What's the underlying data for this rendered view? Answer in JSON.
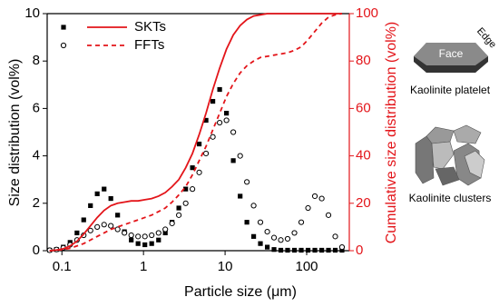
{
  "chart_data": {
    "type": "scatter",
    "xlabel": "Particle size (μm)",
    "ylabel": "Size distribution (vol%)",
    "y2label": "Cumulative size distribution (vol%)",
    "log_x": true,
    "xlim": [
      0.066,
      333
    ],
    "xticks": [
      0.1,
      1,
      10,
      100
    ],
    "ylim": [
      0,
      10
    ],
    "yticks": [
      0,
      2,
      4,
      6,
      8,
      10
    ],
    "y2lim": [
      0,
      100
    ],
    "y2ticks": [
      0,
      20,
      40,
      60,
      80,
      100
    ],
    "y2color": "#e3151a",
    "x": [
      0.0708,
      0.0858,
      0.104,
      0.126,
      0.153,
      0.185,
      0.224,
      0.271,
      0.329,
      0.398,
      0.482,
      0.584,
      0.708,
      0.858,
      1.04,
      1.26,
      1.53,
      1.85,
      2.24,
      2.71,
      3.29,
      3.98,
      4.82,
      5.84,
      7.08,
      8.58,
      10.4,
      12.6,
      15.3,
      18.5,
      22.4,
      27.1,
      32.9,
      39.8,
      48.2,
      58.4,
      70.8,
      85.8,
      104,
      126,
      153,
      185,
      224,
      271
    ],
    "series": [
      {
        "name": "SKTs",
        "color": "#000000",
        "marker": "square",
        "values": [
          0.02,
          0.05,
          0.15,
          0.35,
          0.75,
          1.3,
          1.9,
          2.4,
          2.6,
          2.2,
          1.5,
          0.8,
          0.45,
          0.3,
          0.25,
          0.3,
          0.45,
          0.75,
          1.2,
          1.8,
          2.6,
          3.5,
          4.5,
          5.5,
          6.3,
          6.8,
          5.8,
          3.8,
          2.3,
          1.2,
          0.6,
          0.3,
          0.15,
          0.05,
          0.02,
          0.02,
          0.02,
          0.02,
          0.02,
          0.02,
          0.02,
          0.02,
          0.02,
          0.02
        ]
      },
      {
        "name": "FFTs",
        "color": "#000000",
        "marker": "circle",
        "values": [
          0.02,
          0.05,
          0.12,
          0.25,
          0.45,
          0.65,
          0.85,
          1.0,
          1.1,
          1.05,
          0.9,
          0.75,
          0.65,
          0.6,
          0.6,
          0.65,
          0.75,
          0.9,
          1.15,
          1.5,
          2.0,
          2.6,
          3.3,
          4.1,
          4.8,
          5.4,
          5.5,
          5.0,
          4.0,
          2.9,
          1.9,
          1.2,
          0.8,
          0.55,
          0.45,
          0.5,
          0.75,
          1.2,
          1.8,
          2.3,
          2.2,
          1.5,
          0.6,
          0.15
        ]
      },
      {
        "axis": "y2",
        "color": "#e3151a",
        "line_style": "solid",
        "values": [
          0,
          0.3,
          0.8,
          2,
          4,
          7,
          10.5,
          14,
          17,
          19,
          20,
          20.5,
          21,
          21,
          21.5,
          22,
          23,
          24.5,
          27,
          30,
          35,
          41,
          49,
          58,
          68,
          77,
          85,
          91,
          95,
          97.5,
          99,
          99.5,
          100,
          100,
          100,
          100,
          100,
          100,
          100,
          100,
          100,
          100,
          100,
          100
        ]
      },
      {
        "axis": "y2",
        "color": "#e3151a",
        "line_style": "dashed",
        "values": [
          0,
          0.2,
          0.5,
          1,
          2,
          3,
          4.5,
          6,
          7.5,
          9,
          10,
          11,
          12,
          13,
          14,
          15,
          16.5,
          18,
          20.5,
          23.5,
          27,
          32,
          38,
          44,
          51,
          58,
          65,
          70.5,
          75,
          78,
          80,
          81.5,
          82,
          82.5,
          83,
          83.5,
          84.5,
          86,
          89,
          92.5,
          96,
          98.5,
          99.5,
          100
        ]
      }
    ],
    "annotations": [
      "Face",
      "Edge",
      "Kaolinite platelet",
      "Kaolinite clusters"
    ]
  }
}
